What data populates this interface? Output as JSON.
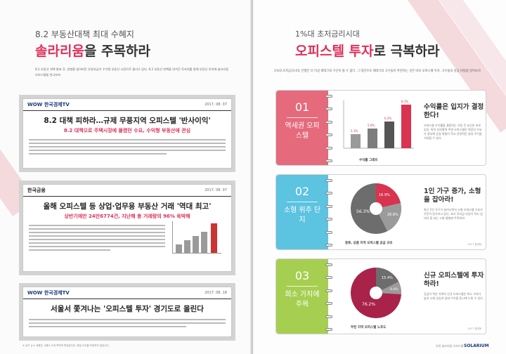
{
  "left": {
    "subtitle": "8.2 부동산대책 최대 수혜지",
    "title_hl": "솔라리움",
    "title_rest": "을 주목하라",
    "intro": "8.2 부동산 대책 발표 후, 방향을 잃어버린 유동자금이 수익형 부동산 시장으로 몰리고 있다. 8.2 부동산 대책을 빗겨간 투자처를 통해 부동산 투자에 솔라리움 오피스텔을 만나보자",
    "clips": [
      {
        "source": "WOW 한국경제TV",
        "date": "2017. 08. 07",
        "headline": "8.2 대책 피하라…규제 무풍지역 오피스텔 '반사이익'",
        "subhead": "8.2 대책으로 주택시장에 몰렸던 수요, 수익형 부동산에 관심"
      },
      {
        "source": "한국금융",
        "date": "2017. 08. 07",
        "headline": "올해 오피스텔 등 상업·업무용 부동산 거래 '역대 최고'",
        "subhead": "상반기에만 24만6774건, 지난해 총 거래량의 96% 육박해"
      },
      {
        "source": "WOW 한국경제TV",
        "date": "2017. 08. 18",
        "headline": "서울서 쫓겨나는 '오피스텔 투자' 경기도로 몰린다",
        "subhead": ""
      }
    ],
    "footnote": "※ 상기 뉴스 내용은 시행사 소개 목적의 편집본으로, 특정 수익을 보장하지 않습니다."
  },
  "right": {
    "subtitle": "1%대 초저금리시대",
    "title_hl": "오피스텔 투자",
    "title_rest": "로 극복하라",
    "intro": "1%대 초저금리시대, 은행은 더 이상 재테크의 수단이 될 수 없다. 그 대안으로 재테크의 고수들이 추천하는 것은 바로 오피스텔 투자. 고수들의 성공 비법을 알아보자",
    "cards": [
      {
        "num": "01",
        "label": "역세권 오피스텔",
        "color": "#e46a7c",
        "title": "수익률은 입지가 결정한다!",
        "body": "오피스텔 수익률을 결정하는 가장 큰 요인은 바로 입지. 특히 지하철역 주변 오피스텔은 직장인 수요가 풍부해 공실 위험이 적고 안정적인 임대 수익을 기대할 수 있다.",
        "caption": "수익률 그래프",
        "bars": [
          "5.1%",
          "5.6%",
          "6.2%",
          "8.1%"
        ],
        "source": ""
      },
      {
        "num": "02",
        "label": "소형 위주 단지",
        "color": "#5cc3e0",
        "title": "1인 가구 증가, 소형을 잡아라!",
        "body": "최근 1인 가구가 늘어나면서 소형 오피스텔 수요가 꾸준히 증가하고 있다. 초기 투자금 부담이 적고 임대가 잘 되는 소형 평형에 주목하라.",
        "caption": "종류, 상품 지역 오피스텔 공급 규모",
        "pie": [
          "56.3%",
          "26.8%",
          "16.9%"
        ],
        "source": "2017 통계청"
      },
      {
        "num": "03",
        "label": "희소 가치에 주목",
        "color": "#a6cf52",
        "title": "신규 오피스텔에 투자하라!",
        "body": "공급이 적은 지역의 신규 오피스텔은 희소 가치가 높아 시세 상승과 임대 수익을 동시에 누릴 수 있다.",
        "caption": "부천 지역 오피스텔 노후도",
        "pie": [
          "76.2%",
          "15.4%",
          "8.4%"
        ],
        "source": "2017 통계청"
      }
    ],
    "page_label": "부천 솔라리움 오피스텔",
    "brand": "SOLARIUM"
  }
}
